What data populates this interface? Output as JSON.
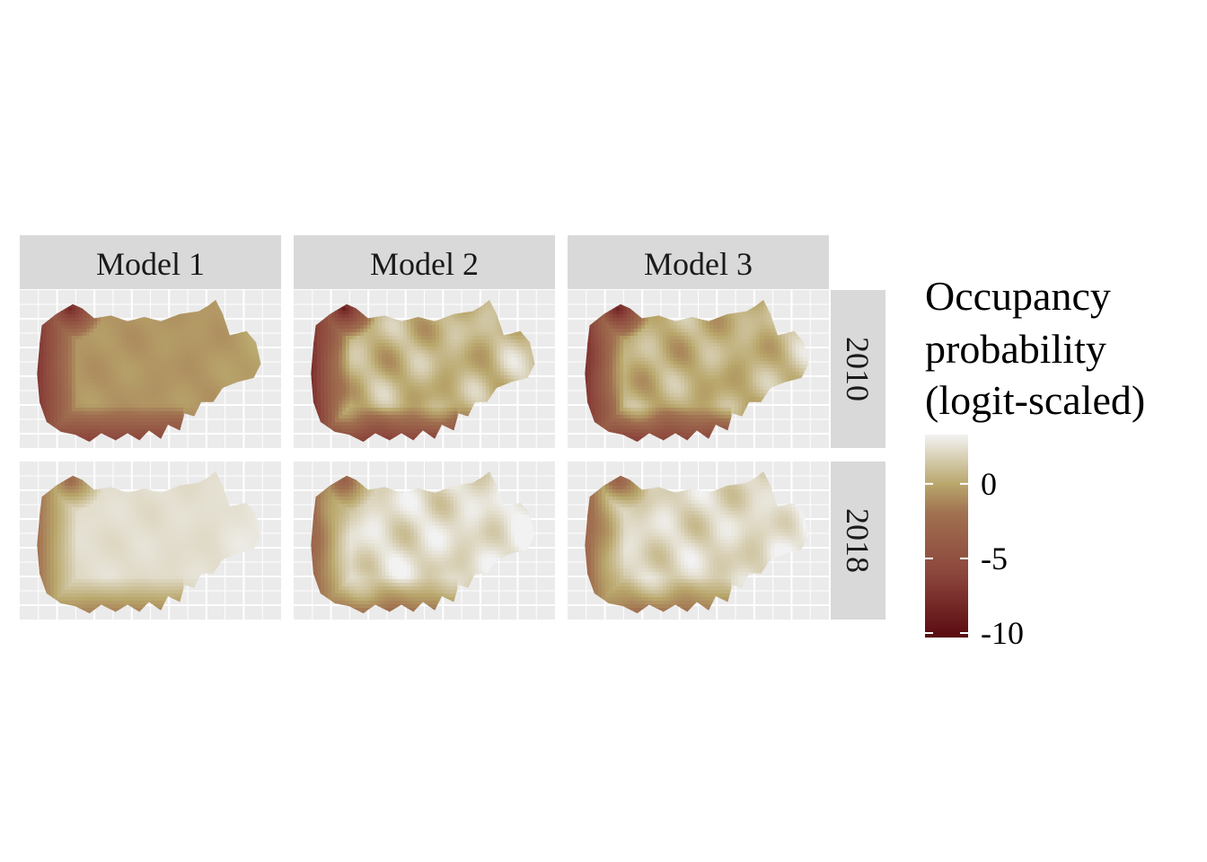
{
  "chart_data": {
    "type": "heatmap",
    "title": "",
    "facet_columns": [
      "Model 1",
      "Model 2",
      "Model 3"
    ],
    "facet_rows": [
      "2010",
      "2018"
    ],
    "legend": {
      "title_lines": [
        "Occupancy",
        "probability",
        "(logit-scaled)"
      ],
      "breaks": [
        0,
        -5,
        -10
      ],
      "break_labels": [
        "0",
        "-5",
        "-10"
      ],
      "limits": [
        -10.3,
        3.3
      ],
      "placement": "right"
    },
    "colors": {
      "high": "#f2f2f2",
      "mid": "#b9a76c",
      "low_mid": "#a07050",
      "low": "#5a0a10",
      "panel_background": "#ebebeb",
      "strip_background": "#d9d9d9",
      "grid": "#ffffff"
    },
    "panels": [
      {
        "model": "Model 1",
        "year": "2010",
        "base_value": -0.6,
        "edge_min": -8.0,
        "variation": 0.4
      },
      {
        "model": "Model 2",
        "year": "2010",
        "base_value": 0.6,
        "edge_min": -8.8,
        "variation": 2.0
      },
      {
        "model": "Model 3",
        "year": "2010",
        "base_value": 0.4,
        "edge_min": -8.5,
        "variation": 1.8
      },
      {
        "model": "Model 1",
        "year": "2018",
        "base_value": 2.4,
        "edge_min": -2.6,
        "variation": 0.3
      },
      {
        "model": "Model 2",
        "year": "2018",
        "base_value": 2.3,
        "edge_min": -3.6,
        "variation": 1.6
      },
      {
        "model": "Model 3",
        "year": "2018",
        "base_value": 2.1,
        "edge_min": -3.4,
        "variation": 1.5
      }
    ]
  }
}
